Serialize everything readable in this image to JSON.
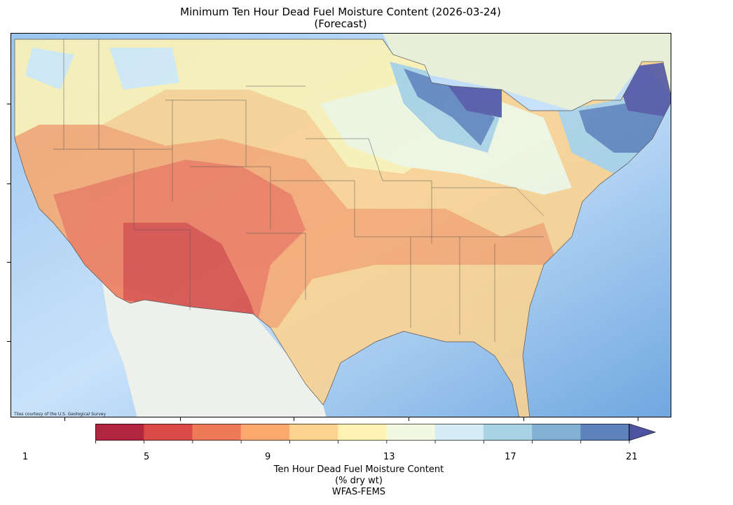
{
  "title": {
    "line1": "Minimum Ten Hour Dead Fuel Moisture Content (2026-03-24)",
    "line2": "(Forecast)"
  },
  "map": {
    "credit": "Tiles courtesy of the U.S. Geological Survey"
  },
  "colorbar": {
    "label_line1": "Ten Hour Dead Fuel Moisture Content",
    "label_line2": "(% dry wt)",
    "label_line3": "WFAS-FEMS",
    "min": 1,
    "max": 23,
    "extend": "max",
    "tick_labels": [
      "1",
      "5",
      "9",
      "13",
      "17",
      "21"
    ],
    "bins": [
      1,
      3,
      5,
      7,
      9,
      11,
      13,
      15,
      17,
      19,
      21,
      23
    ],
    "colors": [
      "#b3253f",
      "#d94b44",
      "#ef7a5a",
      "#f9a86e",
      "#fdd38f",
      "#fef3b3",
      "#f3f9e0",
      "#d4ecf3",
      "#a9d2e4",
      "#82b1d3",
      "#5e82bb"
    ],
    "extend_color": "#4e53a1"
  }
}
